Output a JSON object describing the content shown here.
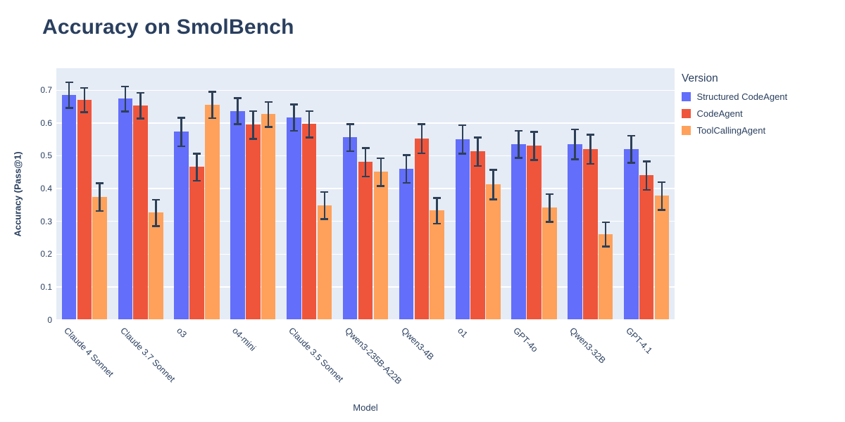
{
  "title": "Accuracy on SmolBench",
  "legend": {
    "title": "Version"
  },
  "chart_data": {
    "type": "bar",
    "title": "Accuracy on SmolBench",
    "xlabel": "Model",
    "ylabel": "Accuracy (Pass@1)",
    "ylim": [
      0,
      0.767
    ],
    "grid": true,
    "legend_position": "right",
    "plot_bg": "#E5ECF6",
    "error_bar_color": "#2e4057",
    "yticks": [
      {
        "value": 0,
        "label": "0"
      },
      {
        "value": 0.1,
        "label": "0.1"
      },
      {
        "value": 0.2,
        "label": "0.2"
      },
      {
        "value": 0.3,
        "label": "0.3"
      },
      {
        "value": 0.4,
        "label": "0.4"
      },
      {
        "value": 0.5,
        "label": "0.5"
      },
      {
        "value": 0.6,
        "label": "0.6"
      },
      {
        "value": 0.7,
        "label": "0.7"
      }
    ],
    "categories": [
      "Claude 4 Sonnet",
      "Claude 3.7 Sonnet",
      "o3",
      "o4-mini",
      "Claude 3.5 Sonnet",
      "Qwen3-235B-A22B",
      "Qwen3-4B",
      "o1",
      "GPT-4o",
      "Qwen3-32B",
      "GPT-4.1"
    ],
    "series": [
      {
        "name": "Structured CodeAgent",
        "color": "#636EFA",
        "values": [
          0.685,
          0.673,
          0.572,
          0.636,
          0.616,
          0.555,
          0.46,
          0.55,
          0.535,
          0.535,
          0.52
        ],
        "errors": [
          0.042,
          0.041,
          0.046,
          0.042,
          0.043,
          0.044,
          0.045,
          0.046,
          0.044,
          0.048,
          0.044
        ]
      },
      {
        "name": "CodeAgent",
        "color": "#EF553B",
        "values": [
          0.67,
          0.653,
          0.465,
          0.594,
          0.596,
          0.48,
          0.552,
          0.512,
          0.53,
          0.52,
          0.439
        ],
        "errors": [
          0.04,
          0.042,
          0.044,
          0.045,
          0.043,
          0.046,
          0.047,
          0.046,
          0.046,
          0.047,
          0.046
        ]
      },
      {
        "name": "ToolCallingAgent",
        "color": "#FFA15A",
        "values": [
          0.374,
          0.326,
          0.655,
          0.626,
          0.348,
          0.45,
          0.332,
          0.412,
          0.341,
          0.26,
          0.377
        ],
        "errors": [
          0.045,
          0.043,
          0.043,
          0.041,
          0.044,
          0.045,
          0.042,
          0.048,
          0.045,
          0.04,
          0.045
        ]
      }
    ]
  }
}
